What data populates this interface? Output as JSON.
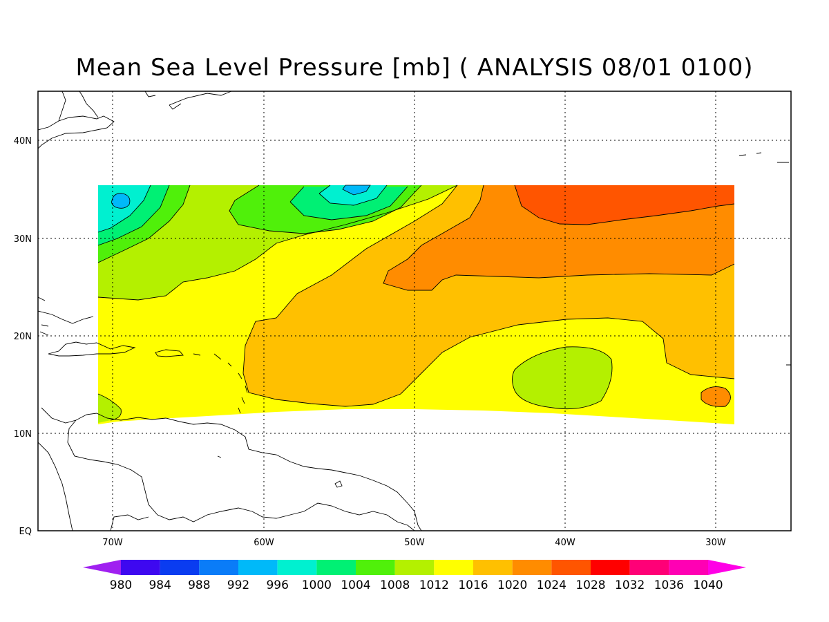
{
  "title": "Mean Sea Level Pressure [mb] ( ANALYSIS 08/01 0100)",
  "map": {
    "lon_range": [
      -75,
      -25
    ],
    "lat_range": [
      0,
      45
    ],
    "grid": true,
    "lat_tick_labels": [
      "EQ",
      "10N",
      "20N",
      "30N",
      "40N"
    ],
    "lon_tick_labels": [
      "70W",
      "60W",
      "50W",
      "40W",
      "30W"
    ]
  },
  "features": [
    {
      "name": "high-pressure-core-northeast",
      "label": "1024-1028 mb"
    },
    {
      "name": "low-pressure-center-north-68W",
      "label": "992-996 mb"
    },
    {
      "name": "low-pressure-center-north-54W",
      "label": "992-996 mb"
    },
    {
      "name": "relative-low-40W-16N",
      "label": "1012-1016 mb"
    }
  ],
  "colorbar": {
    "labels": [
      "980",
      "984",
      "988",
      "992",
      "996",
      "1000",
      "1004",
      "1008",
      "1012",
      "1016",
      "1020",
      "1024",
      "1028",
      "1032",
      "1036",
      "1040"
    ],
    "colors": [
      "#a020f0",
      "#3e08f0",
      "#0a3cf0",
      "#0a7cf8",
      "#00b9f9",
      "#00f0d0",
      "#00f074",
      "#50f00a",
      "#b4f000",
      "#ffff00",
      "#ffc000",
      "#ff8c00",
      "#ff5500",
      "#ff0000",
      "#ff0077",
      "#ff00b4",
      "#ff00e6"
    ]
  }
}
